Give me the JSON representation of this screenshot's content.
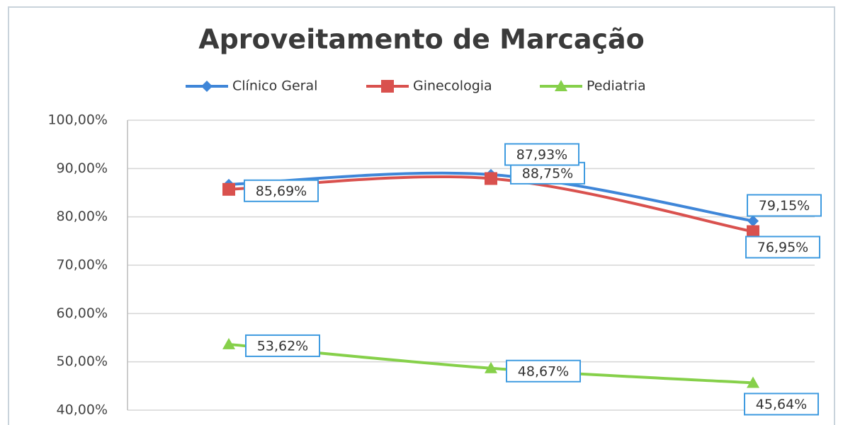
{
  "chart_data": {
    "type": "line",
    "title": "Aproveitamento de Marcação",
    "categories": [
      null,
      null,
      null
    ],
    "series": [
      {
        "name": "Clínico Geral",
        "color": "#3f86d8",
        "marker": "diamond",
        "values": [
          86.7,
          88.75,
          79.15
        ],
        "value_labels": [
          null,
          "88,75%",
          "79,15%"
        ]
      },
      {
        "name": "Ginecologia",
        "color": "#d9514e",
        "marker": "square",
        "values": [
          85.69,
          87.93,
          76.95
        ],
        "value_labels": [
          "85,69%",
          "87,93%",
          "76,95%"
        ]
      },
      {
        "name": "Pediatria",
        "color": "#86d04a",
        "marker": "triangle",
        "values": [
          53.62,
          48.67,
          45.64
        ],
        "value_labels": [
          "53,62%",
          "48,67%",
          "45,64%"
        ]
      }
    ],
    "ylim": [
      40,
      100
    ],
    "yticks": [
      {
        "value": 40,
        "label": "40,00%"
      },
      {
        "value": 50,
        "label": "50,00%"
      },
      {
        "value": 60,
        "label": "60,00%"
      },
      {
        "value": 70,
        "label": "70,00%"
      },
      {
        "value": 80,
        "label": "80,00%"
      },
      {
        "value": 90,
        "label": "90,00%"
      },
      {
        "value": 100,
        "label": "100,00%"
      }
    ],
    "grid": true,
    "legend": "top"
  }
}
